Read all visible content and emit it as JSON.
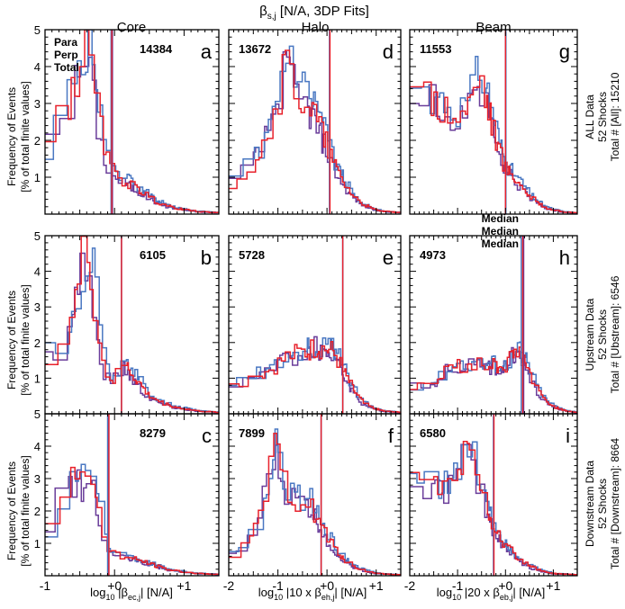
{
  "figure": {
    "title_main": "β",
    "title_sub": "s,j",
    "title_rest": " [N/A, 3DP Fits]",
    "col_titles": [
      "Core",
      "Halo",
      "Beam"
    ],
    "ylabel_line1": "Frequency of Events",
    "ylabel_line2": "[% of total finite values]",
    "row_labels": [
      {
        "l1": "ALL Data",
        "l2": "52 Shocks",
        "l3": "Total # [All]:  15210"
      },
      {
        "l1": "Upstream Data",
        "l2": "52 Shocks",
        "l3": "Total # [Ubstream]:  6546"
      },
      {
        "l1": "Downstream Data",
        "l2": "52 Shocks",
        "l3": "Total # [Downstream]:  8664"
      }
    ],
    "xlabels": [
      {
        "pre": "log",
        "sub": "10",
        "mid": " |β",
        "sub2": "ec,j",
        "post": "| [N/A]"
      },
      {
        "pre": "log",
        "sub": "10",
        "mid": " |10 x β",
        "sub2": "eh,j",
        "post": "| [N/A]"
      },
      {
        "pre": "log",
        "sub": "10",
        "mid": " |20 x β",
        "sub2": "eb,j",
        "post": "| [N/A]"
      }
    ],
    "legend_top": [
      {
        "label": "Para",
        "color": "#6a3d9a"
      },
      {
        "label": "Perp",
        "color": "#4a78c2"
      },
      {
        "label": "Total",
        "color": "#e8212b"
      }
    ],
    "legend_median": [
      {
        "label": "Median",
        "color": "#6a3d9a"
      },
      {
        "label": "Median",
        "color": "#4a78c2"
      },
      {
        "label": "Median",
        "color": "#e8212b"
      }
    ]
  },
  "chart_data": {
    "type": "histogram-grid",
    "colors": {
      "para": "#6a3d9a",
      "perp": "#4a78c2",
      "total": "#e8212b"
    },
    "ylim": [
      0,
      5
    ],
    "yticks": [
      1,
      2,
      3,
      4,
      5
    ],
    "columns": [
      {
        "name": "Core",
        "xlim": [
          -1,
          1.5
        ],
        "xticks": [
          {
            "v": -1,
            "label": "-1"
          },
          {
            "v": 0,
            "label": "+0"
          },
          {
            "v": 1,
            "label": "+1"
          }
        ]
      },
      {
        "name": "Halo",
        "xlim": [
          -2,
          1.5
        ],
        "xticks": [
          {
            "v": -2,
            "label": "-2"
          },
          {
            "v": -1,
            "label": "-1"
          },
          {
            "v": 0,
            "label": "+0"
          },
          {
            "v": 1,
            "label": "+1"
          }
        ]
      },
      {
        "name": "Beam",
        "xlim": [
          -2,
          1.5
        ],
        "xticks": [
          {
            "v": -2,
            "label": "-2"
          },
          {
            "v": -1,
            "label": "-1"
          },
          {
            "v": 0,
            "label": "+0"
          },
          {
            "v": 1,
            "label": "+1"
          }
        ]
      }
    ],
    "panels": [
      {
        "letter": "a",
        "count": "14384",
        "count_pos": "top-right",
        "medians": [
          -0.03,
          -0.05,
          -0.04
        ],
        "curve": [
          [
            -1.0,
            1.2
          ],
          [
            -0.85,
            2.6
          ],
          [
            -0.72,
            2.9
          ],
          [
            -0.6,
            3.2
          ],
          [
            -0.5,
            3.8
          ],
          [
            -0.4,
            4.4
          ],
          [
            -0.32,
            4.0
          ],
          [
            -0.25,
            3.1
          ],
          [
            -0.18,
            2.2
          ],
          [
            -0.1,
            1.5
          ],
          [
            0.0,
            1.05
          ],
          [
            0.2,
            0.85
          ],
          [
            0.4,
            0.6
          ],
          [
            0.6,
            0.35
          ],
          [
            0.8,
            0.2
          ],
          [
            1.0,
            0.12
          ],
          [
            1.2,
            0.07
          ],
          [
            1.5,
            0.04
          ]
        ]
      },
      {
        "letter": "b",
        "count": "6105",
        "count_pos": "top-right",
        "medians": [
          0.1,
          0.1,
          0.1
        ],
        "curve": [
          [
            -1.0,
            1.7
          ],
          [
            -0.85,
            1.6
          ],
          [
            -0.72,
            2.0
          ],
          [
            -0.6,
            2.9
          ],
          [
            -0.5,
            3.6
          ],
          [
            -0.4,
            4.7
          ],
          [
            -0.32,
            3.9
          ],
          [
            -0.25,
            2.6
          ],
          [
            -0.18,
            1.6
          ],
          [
            -0.1,
            1.1
          ],
          [
            0.0,
            0.9
          ],
          [
            0.15,
            1.4
          ],
          [
            0.3,
            1.0
          ],
          [
            0.5,
            0.5
          ],
          [
            0.7,
            0.3
          ],
          [
            0.9,
            0.18
          ],
          [
            1.2,
            0.08
          ],
          [
            1.5,
            0.04
          ]
        ]
      },
      {
        "letter": "c",
        "count": "8279",
        "count_pos": "top-right",
        "medians": [
          -0.09,
          -0.1,
          -0.08
        ],
        "curve": [
          [
            -1.0,
            0.7
          ],
          [
            -0.85,
            1.9
          ],
          [
            -0.72,
            2.5
          ],
          [
            -0.6,
            3.1
          ],
          [
            -0.5,
            2.9
          ],
          [
            -0.4,
            2.7
          ],
          [
            -0.32,
            3.2
          ],
          [
            -0.25,
            2.4
          ],
          [
            -0.18,
            1.7
          ],
          [
            -0.1,
            0.9
          ],
          [
            0.0,
            0.7
          ],
          [
            0.2,
            0.55
          ],
          [
            0.4,
            0.45
          ],
          [
            0.6,
            0.3
          ],
          [
            0.8,
            0.18
          ],
          [
            1.0,
            0.12
          ],
          [
            1.2,
            0.07
          ],
          [
            1.5,
            0.04
          ]
        ]
      },
      {
        "letter": "d",
        "count": "13672",
        "count_pos": "top-left",
        "medians": [
          0.05,
          0.05,
          0.06
        ],
        "curve": [
          [
            -2.0,
            0.7
          ],
          [
            -1.7,
            1.1
          ],
          [
            -1.45,
            1.5
          ],
          [
            -1.25,
            2.0
          ],
          [
            -1.05,
            2.8
          ],
          [
            -0.9,
            3.6
          ],
          [
            -0.8,
            4.1
          ],
          [
            -0.68,
            3.6
          ],
          [
            -0.55,
            3.2
          ],
          [
            -0.4,
            3.0
          ],
          [
            -0.25,
            2.7
          ],
          [
            -0.1,
            2.2
          ],
          [
            0.05,
            1.7
          ],
          [
            0.2,
            1.2
          ],
          [
            0.35,
            0.85
          ],
          [
            0.5,
            0.55
          ],
          [
            0.7,
            0.3
          ],
          [
            0.9,
            0.16
          ],
          [
            1.1,
            0.08
          ],
          [
            1.5,
            0.04
          ]
        ]
      },
      {
        "letter": "e",
        "count": "5728",
        "count_pos": "top-left",
        "medians": [
          0.32,
          0.32,
          0.32
        ],
        "curve": [
          [
            -2.0,
            0.75
          ],
          [
            -1.7,
            0.9
          ],
          [
            -1.45,
            1.1
          ],
          [
            -1.2,
            1.2
          ],
          [
            -1.0,
            1.4
          ],
          [
            -0.8,
            1.6
          ],
          [
            -0.6,
            1.7
          ],
          [
            -0.4,
            1.75
          ],
          [
            -0.2,
            1.9
          ],
          [
            0.0,
            1.8
          ],
          [
            0.15,
            1.75
          ],
          [
            0.3,
            1.3
          ],
          [
            0.45,
            0.9
          ],
          [
            0.6,
            0.55
          ],
          [
            0.75,
            0.3
          ],
          [
            0.95,
            0.15
          ],
          [
            1.2,
            0.07
          ],
          [
            1.5,
            0.04
          ]
        ]
      },
      {
        "letter": "f",
        "count": "7899",
        "count_pos": "top-left",
        "medians": [
          -0.12,
          -0.12,
          -0.12
        ],
        "curve": [
          [
            -2.0,
            0.55
          ],
          [
            -1.7,
            0.8
          ],
          [
            -1.5,
            1.2
          ],
          [
            -1.35,
            1.8
          ],
          [
            -1.2,
            2.8
          ],
          [
            -1.05,
            3.8
          ],
          [
            -0.95,
            3.4
          ],
          [
            -0.85,
            2.8
          ],
          [
            -0.7,
            2.5
          ],
          [
            -0.55,
            2.3
          ],
          [
            -0.4,
            2.3
          ],
          [
            -0.25,
            2.0
          ],
          [
            -0.1,
            1.5
          ],
          [
            0.05,
            1.1
          ],
          [
            0.2,
            0.75
          ],
          [
            0.4,
            0.45
          ],
          [
            0.6,
            0.25
          ],
          [
            0.85,
            0.12
          ],
          [
            1.1,
            0.06
          ],
          [
            1.5,
            0.03
          ]
        ]
      },
      {
        "letter": "g",
        "count": "11553",
        "count_pos": "top-left",
        "medians": [
          0.0,
          0.01,
          0.0
        ],
        "curve": [
          [
            -2.0,
            3.3
          ],
          [
            -1.6,
            3.2
          ],
          [
            -1.35,
            3.0
          ],
          [
            -1.15,
            2.8
          ],
          [
            -0.95,
            2.7
          ],
          [
            -0.8,
            2.9
          ],
          [
            -0.68,
            3.3
          ],
          [
            -0.55,
            3.8
          ],
          [
            -0.45,
            3.5
          ],
          [
            -0.35,
            2.9
          ],
          [
            -0.25,
            2.4
          ],
          [
            -0.15,
            1.9
          ],
          [
            -0.05,
            1.4
          ],
          [
            0.05,
            1.2
          ],
          [
            0.2,
            1.0
          ],
          [
            0.35,
            0.75
          ],
          [
            0.5,
            0.5
          ],
          [
            0.7,
            0.3
          ],
          [
            0.9,
            0.15
          ],
          [
            1.2,
            0.06
          ],
          [
            1.5,
            0.03
          ]
        ]
      },
      {
        "letter": "h",
        "count": "4973",
        "count_pos": "top-left",
        "medians": [
          0.38,
          0.33,
          0.36
        ],
        "curve": [
          [
            -2.0,
            0.75
          ],
          [
            -1.6,
            0.85
          ],
          [
            -1.35,
            1.0
          ],
          [
            -1.15,
            1.3
          ],
          [
            -0.95,
            1.4
          ],
          [
            -0.8,
            1.35
          ],
          [
            -0.65,
            1.45
          ],
          [
            -0.5,
            1.3
          ],
          [
            -0.35,
            1.4
          ],
          [
            -0.2,
            1.35
          ],
          [
            -0.05,
            1.3
          ],
          [
            0.1,
            1.5
          ],
          [
            0.25,
            1.75
          ],
          [
            0.4,
            1.5
          ],
          [
            0.55,
            1.0
          ],
          [
            0.7,
            0.6
          ],
          [
            0.85,
            0.35
          ],
          [
            1.05,
            0.18
          ],
          [
            1.3,
            0.08
          ],
          [
            1.5,
            0.04
          ]
        ]
      },
      {
        "letter": "i",
        "count": "6580",
        "count_pos": "top-left",
        "medians": [
          -0.25,
          -0.25,
          -0.24
        ],
        "curve": [
          [
            -2.0,
            3.0
          ],
          [
            -1.6,
            2.9
          ],
          [
            -1.35,
            2.7
          ],
          [
            -1.15,
            2.8
          ],
          [
            -1.0,
            3.0
          ],
          [
            -0.9,
            3.5
          ],
          [
            -0.8,
            3.9
          ],
          [
            -0.7,
            3.6
          ],
          [
            -0.6,
            3.1
          ],
          [
            -0.5,
            2.7
          ],
          [
            -0.4,
            2.3
          ],
          [
            -0.3,
            1.8
          ],
          [
            -0.2,
            1.4
          ],
          [
            -0.05,
            1.05
          ],
          [
            0.1,
            0.8
          ],
          [
            0.3,
            0.5
          ],
          [
            0.5,
            0.3
          ],
          [
            0.75,
            0.15
          ],
          [
            1.0,
            0.07
          ],
          [
            1.5,
            0.03
          ]
        ]
      }
    ]
  }
}
